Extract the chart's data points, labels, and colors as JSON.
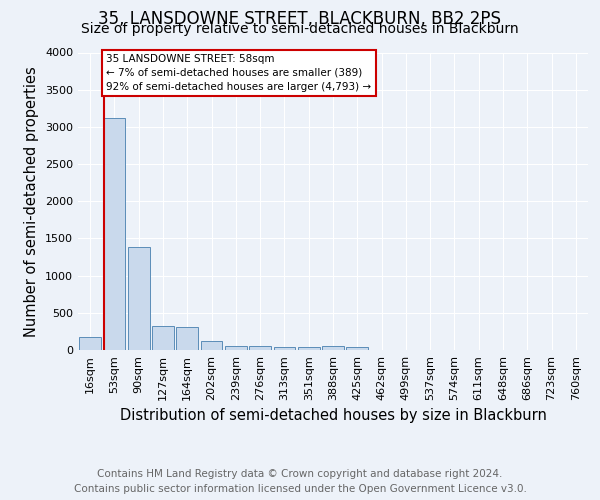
{
  "title": "35, LANSDOWNE STREET, BLACKBURN, BB2 2PS",
  "subtitle": "Size of property relative to semi-detached houses in Blackburn",
  "xlabel": "Distribution of semi-detached houses by size in Blackburn",
  "ylabel": "Number of semi-detached properties",
  "footer_line1": "Contains HM Land Registry data © Crown copyright and database right 2024.",
  "footer_line2": "Contains public sector information licensed under the Open Government Licence v3.0.",
  "bar_labels": [
    "16sqm",
    "53sqm",
    "90sqm",
    "127sqm",
    "164sqm",
    "202sqm",
    "239sqm",
    "276sqm",
    "313sqm",
    "351sqm",
    "388sqm",
    "425sqm",
    "462sqm",
    "499sqm",
    "537sqm",
    "574sqm",
    "611sqm",
    "648sqm",
    "686sqm",
    "723sqm",
    "760sqm"
  ],
  "bar_heights": [
    175,
    3125,
    1380,
    320,
    310,
    115,
    60,
    50,
    40,
    40,
    60,
    40,
    0,
    0,
    0,
    0,
    0,
    0,
    0,
    0,
    0
  ],
  "bar_color": "#c9d9ec",
  "bar_edge_color": "#5b8db8",
  "subject_line_color": "#cc0000",
  "annotation_text": "35 LANSDOWNE STREET: 58sqm\n← 7% of semi-detached houses are smaller (389)\n92% of semi-detached houses are larger (4,793) →",
  "annotation_box_color": "#cc0000",
  "annotation_box_fill": "#ffffff",
  "ylim": [
    0,
    4000
  ],
  "yticks": [
    0,
    500,
    1000,
    1500,
    2000,
    2500,
    3000,
    3500,
    4000
  ],
  "bg_color": "#edf2f9",
  "grid_color": "#ffffff",
  "title_fontsize": 12,
  "subtitle_fontsize": 10,
  "axis_label_fontsize": 10.5,
  "tick_fontsize": 8,
  "footer_fontsize": 7.5
}
